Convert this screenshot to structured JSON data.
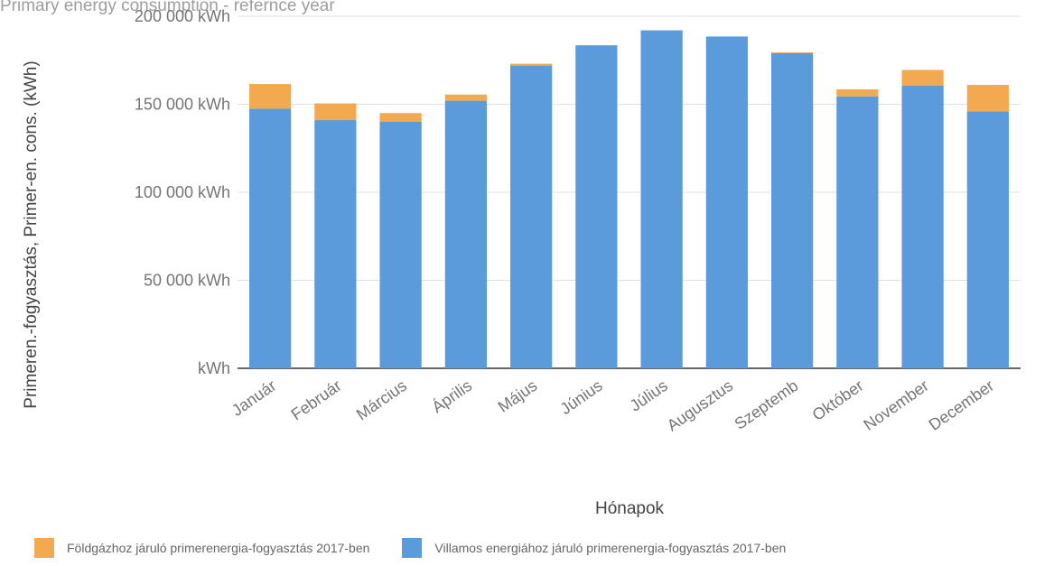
{
  "colors": {
    "gas": "#f2a94f",
    "electric": "#5b9bdc"
  },
  "chart_data": {
    "type": "bar",
    "stacked": true,
    "title": "Primary energy consumption - refernce year",
    "xlabel": "Hónapok",
    "ylabel": "Primeren.-fogyasztás, Primer-en. cons. (kWh)",
    "ylim": [
      0,
      200000
    ],
    "yticks": [
      {
        "value": 0,
        "label": "kWh"
      },
      {
        "value": 50000,
        "label": "50 000  kWh"
      },
      {
        "value": 100000,
        "label": "100 000  kWh"
      },
      {
        "value": 150000,
        "label": "150 000  kWh"
      },
      {
        "value": 200000,
        "label": "200 000  kWh"
      }
    ],
    "categories": [
      "Január",
      "Február",
      "Március",
      "Április",
      "Május",
      "Június",
      "Július",
      "Augusztus",
      "Szeptemb",
      "Október",
      "November",
      "December"
    ],
    "series": [
      {
        "key": "electric",
        "name": "Villamos energiához járuló primerenergia-fogyasztás 2017-ben",
        "values": [
          147500,
          141000,
          140000,
          152000,
          172000,
          183500,
          192000,
          188500,
          179000,
          154500,
          160500,
          146000
        ]
      },
      {
        "key": "gas",
        "name": "Földgázhoz járuló primerenergia-fogyasztás 2017-ben",
        "values": [
          14000,
          9500,
          5000,
          3500,
          1000,
          0,
          0,
          0,
          500,
          4000,
          9000,
          15000
        ]
      }
    ],
    "grid": true,
    "legend": "bottom"
  }
}
